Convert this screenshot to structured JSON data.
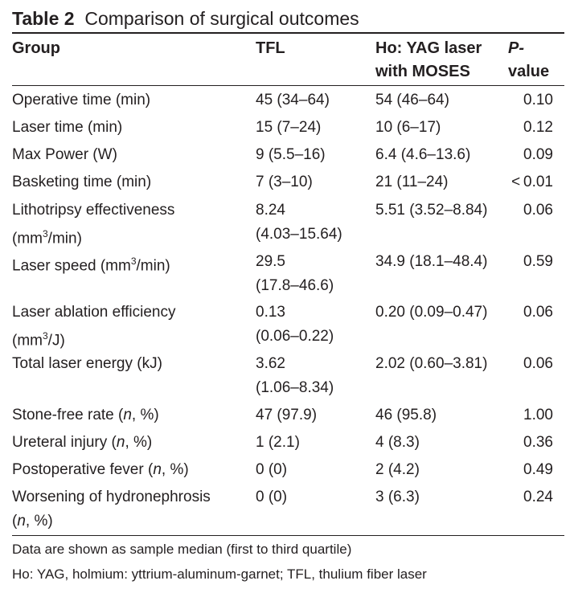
{
  "table": {
    "label": "Table 2",
    "title": "Comparison of surgical outcomes",
    "headers": {
      "group": "Group",
      "tfl": "TFL",
      "ho_line1": "Ho: YAG laser",
      "ho_line2": "with MOSES",
      "p_line1": "P-",
      "p_line2": "value"
    },
    "rows": [
      {
        "group": "Operative time (min)",
        "tfl": "45 (34–64)",
        "ho": "54 (46–64)",
        "p": "0.10"
      },
      {
        "group": "Laser time (min)",
        "tfl": "15 (7–24)",
        "ho": "10 (6–17)",
        "p": "0.12"
      },
      {
        "group": "Max Power (W)",
        "tfl": "9 (5.5–16)",
        "ho": "6.4 (4.6–13.6)",
        "p": "0.09"
      },
      {
        "group": "Basketing time (min)",
        "tfl": "7 (3–10)",
        "ho": "21 (11–24)",
        "p": "< 0.01"
      },
      {
        "group_line1": "Lithotripsy effectiveness",
        "group_line2_pre": "(mm",
        "group_sup": "3",
        "group_line2_post": "/min)",
        "tfl_line1": "8.24",
        "tfl_line2": "(4.03–15.64)",
        "ho": "5.51 (3.52–8.84)",
        "p": "0.06"
      },
      {
        "group_pre": "Laser speed (mm",
        "group_sup": "3",
        "group_post": "/min)",
        "tfl_line1": "29.5",
        "tfl_line2": "(17.8–46.6)",
        "ho": "34.9 (18.1–48.4)",
        "p": "0.59"
      },
      {
        "group_line1": "Laser ablation efficiency",
        "group_line2_pre": "(mm",
        "group_sup": "3",
        "group_line2_post": "/J)",
        "tfl_line1": "0.13",
        "tfl_line2": "(0.06–0.22)",
        "ho": "0.20 (0.09–0.47)",
        "p": "0.06"
      },
      {
        "group": "Total laser energy (kJ)",
        "tfl_line1": "3.62",
        "tfl_line2": "(1.06–8.34)",
        "ho": "2.02 (0.60–3.81)",
        "p": "0.06"
      },
      {
        "group_pre": "Stone-free rate (",
        "group_italic": "n",
        "group_post": ", %)",
        "tfl": "47 (97.9)",
        "ho": "46 (95.8)",
        "p": "1.00"
      },
      {
        "group_pre": "Ureteral injury (",
        "group_italic": "n",
        "group_post": ", %)",
        "tfl": "1 (2.1)",
        "ho": "4 (8.3)",
        "p": "0.36"
      },
      {
        "group_pre": "Postoperative fever (",
        "group_italic": "n",
        "group_post": ", %)",
        "tfl": "0 (0)",
        "ho": "2 (4.2)",
        "p": "0.49"
      },
      {
        "group_line1": "Worsening of hydronephrosis",
        "group_line2_pre": "(",
        "group_italic": "n",
        "group_line2_post": ", %)",
        "tfl": "0 (0)",
        "ho": "3 (6.3)",
        "p": "0.24"
      }
    ],
    "footnotes": [
      "Data are shown as sample median (first to third quartile)",
      "Ho: YAG, holmium: yttrium-aluminum-garnet; TFL, thulium fiber laser"
    ]
  }
}
